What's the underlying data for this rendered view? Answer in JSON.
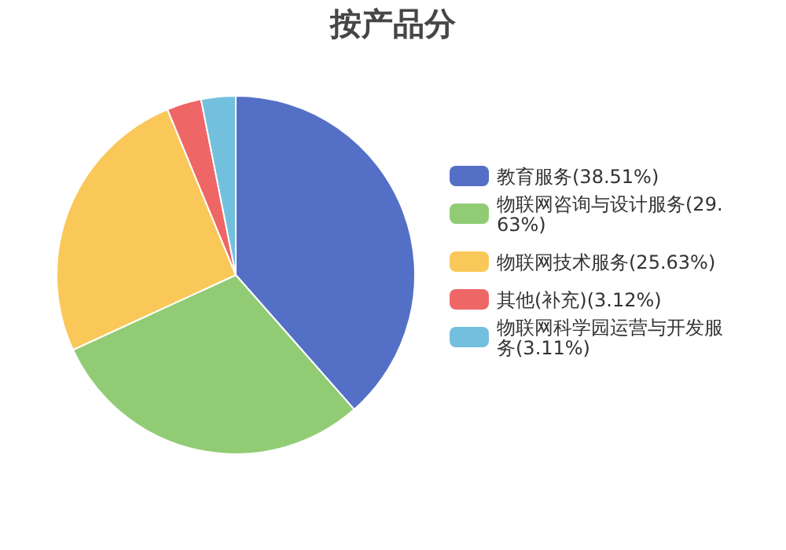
{
  "chart_data": {
    "type": "pie",
    "title": "按产品分",
    "categories": [
      "教育服务(38.51%)",
      "物联网咨询与设计服务(29.63%)",
      "物联网技术服务(25.63%)",
      "其他(补充)(3.12%)",
      "物联网科学园运营与开发服务(3.11%)"
    ],
    "values": [
      38.51,
      29.63,
      25.63,
      3.12,
      3.11
    ],
    "colors": [
      "#5470c6",
      "#91cc75",
      "#fac858",
      "#ee6666",
      "#73c0de"
    ],
    "legend": "right"
  }
}
